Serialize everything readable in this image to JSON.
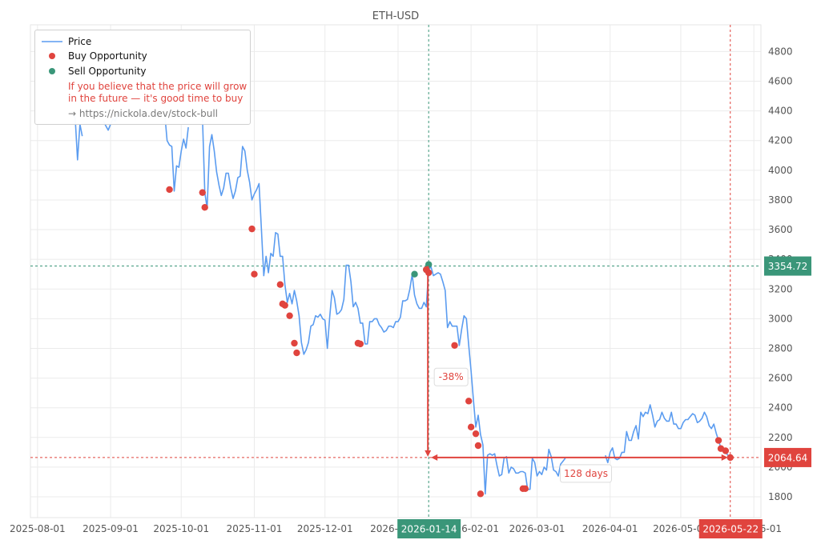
{
  "chart_data": {
    "type": "line",
    "title": "ETH-USD",
    "xlabel": "",
    "ylabel": "",
    "ylim": [
      1660,
      4980
    ],
    "y_ticks": [
      1800,
      2000,
      2200,
      2400,
      2600,
      2800,
      3000,
      3200,
      3400,
      3600,
      3800,
      4000,
      4200,
      4400,
      4600,
      4800
    ],
    "x_start": "2025-07-29",
    "x_end": "2026-06-04",
    "x_ticks": [
      "2025-08-01",
      "2025-09-01",
      "2025-10-01",
      "2025-11-01",
      "2025-12-01",
      "2026-01-01",
      "2026-02-01",
      "2026-03-01",
      "2026-04-01",
      "2026-05-01",
      "2026-06-01"
    ],
    "x_tick_labels": [
      "2025-08-01",
      "2025-09-01",
      "2025-10-01",
      "2025-11-01",
      "2025-12-01",
      "2026-01-01",
      "2026-02-01",
      "2026-03-01",
      "2026-04-01",
      "2026-05-01",
      "2026-06-01"
    ],
    "grid": true,
    "legend_position": "top-left",
    "colors": {
      "price": "#5b9cf0",
      "buy": "#e0443e",
      "sell": "#3a9679",
      "grid": "#ebebeb"
    },
    "series": [
      {
        "name": "Price",
        "x": [
          "2025-08-16",
          "2025-08-17",
          "2025-08-18",
          "2025-08-19",
          "2025-08-20",
          "2025-08-29",
          "2025-08-30",
          "2025-08-31",
          "2025-09-01",
          "2025-09-02",
          "2025-09-03",
          "2025-09-04",
          "2025-09-05",
          "2025-09-24",
          "2025-09-25",
          "2025-09-26",
          "2025-09-27",
          "2025-09-28",
          "2025-09-29",
          "2025-09-30",
          "2025-10-01",
          "2025-10-02",
          "2025-10-03",
          "2025-10-04",
          "2025-10-10",
          "2025-10-11",
          "2025-10-12",
          "2025-10-13",
          "2025-10-14",
          "2025-10-15",
          "2025-10-16",
          "2025-10-17",
          "2025-10-18",
          "2025-10-19",
          "2025-10-20",
          "2025-10-21",
          "2025-10-22",
          "2025-10-23",
          "2025-10-24",
          "2025-10-25",
          "2025-10-26",
          "2025-10-27",
          "2025-10-28",
          "2025-10-29",
          "2025-10-30",
          "2025-10-31",
          "2025-11-01",
          "2025-11-02",
          "2025-11-03",
          "2025-11-04",
          "2025-11-05",
          "2025-11-06",
          "2025-11-07",
          "2025-11-08",
          "2025-11-09",
          "2025-11-10",
          "2025-11-11",
          "2025-11-12",
          "2025-11-13",
          "2025-11-14",
          "2025-11-15",
          "2025-11-16",
          "2025-11-17",
          "2025-11-18",
          "2025-11-19",
          "2025-11-20",
          "2025-11-21",
          "2025-11-22",
          "2025-11-23",
          "2025-11-24",
          "2025-11-25",
          "2025-11-26",
          "2025-11-27",
          "2025-11-28",
          "2025-11-29",
          "2025-11-30",
          "2025-12-01",
          "2025-12-02",
          "2025-12-03",
          "2025-12-04",
          "2025-12-05",
          "2025-12-06",
          "2025-12-07",
          "2025-12-08",
          "2025-12-09",
          "2025-12-10",
          "2025-12-11",
          "2025-12-12",
          "2025-12-13",
          "2025-12-14",
          "2025-12-15",
          "2025-12-16",
          "2025-12-17",
          "2025-12-18",
          "2025-12-19",
          "2025-12-20",
          "2025-12-21",
          "2025-12-22",
          "2025-12-23",
          "2025-12-24",
          "2025-12-25",
          "2025-12-26",
          "2025-12-27",
          "2025-12-28",
          "2025-12-29",
          "2025-12-30",
          "2025-12-31",
          "2026-01-01",
          "2026-01-02",
          "2026-01-03",
          "2026-01-04",
          "2026-01-05",
          "2026-01-06",
          "2026-01-07",
          "2026-01-08",
          "2026-01-09",
          "2026-01-10",
          "2026-01-11",
          "2026-01-12",
          "2026-01-13",
          "2026-01-14",
          "2026-01-15",
          "2026-01-16",
          "2026-01-17",
          "2026-01-18",
          "2026-01-19",
          "2026-01-20",
          "2026-01-21",
          "2026-01-22",
          "2026-01-23",
          "2026-01-24",
          "2026-01-25",
          "2026-01-26",
          "2026-01-27",
          "2026-01-28",
          "2026-01-29",
          "2026-01-30",
          "2026-01-31",
          "2026-02-01",
          "2026-02-02",
          "2026-02-03",
          "2026-02-04",
          "2026-02-05",
          "2026-02-06",
          "2026-02-07",
          "2026-02-08",
          "2026-02-09",
          "2026-02-10",
          "2026-02-11",
          "2026-02-12",
          "2026-02-13",
          "2026-02-14",
          "2026-02-15",
          "2026-02-16",
          "2026-02-17",
          "2026-02-18",
          "2026-02-19",
          "2026-02-20",
          "2026-02-21",
          "2026-02-22",
          "2026-02-23",
          "2026-02-24",
          "2026-02-25",
          "2026-02-26",
          "2026-02-27",
          "2026-02-28",
          "2026-03-01",
          "2026-03-02",
          "2026-03-03",
          "2026-03-04",
          "2026-03-05",
          "2026-03-06",
          "2026-03-07",
          "2026-03-08",
          "2026-03-09",
          "2026-03-10",
          "2026-03-11",
          "2026-03-12",
          "2026-03-13",
          "2026-03-30",
          "2026-03-31",
          "2026-04-01",
          "2026-04-02",
          "2026-04-03",
          "2026-04-04",
          "2026-04-05",
          "2026-04-06",
          "2026-04-07",
          "2026-04-08",
          "2026-04-09",
          "2026-04-10",
          "2026-04-11",
          "2026-04-12",
          "2026-04-13",
          "2026-04-14",
          "2026-04-15",
          "2026-04-16",
          "2026-04-17",
          "2026-04-18",
          "2026-04-19",
          "2026-04-20",
          "2026-04-21",
          "2026-04-22",
          "2026-04-23",
          "2026-04-24",
          "2026-04-25",
          "2026-04-26",
          "2026-04-27",
          "2026-04-28",
          "2026-04-29",
          "2026-04-30",
          "2026-05-01",
          "2026-05-02",
          "2026-05-03",
          "2026-05-04",
          "2026-05-05",
          "2026-05-06",
          "2026-05-07",
          "2026-05-08",
          "2026-05-09",
          "2026-05-10",
          "2026-05-11",
          "2026-05-12",
          "2026-05-13",
          "2026-05-14",
          "2026-05-15",
          "2026-05-16",
          "2026-05-17",
          "2026-05-18",
          "2026-05-19",
          "2026-05-20",
          "2026-05-21",
          "2026-05-22"
        ],
        "values": [
          4380,
          4350,
          4070,
          4310,
          4230,
          4330,
          4300,
          4270,
          4310,
          4350,
          4330,
          4380,
          4400,
          4380,
          4200,
          4170,
          4160,
          3860,
          4030,
          4020,
          4130,
          4210,
          4150,
          4290,
          4350,
          3850,
          3745,
          4160,
          4240,
          4130,
          3990,
          3900,
          3830,
          3880,
          3980,
          3980,
          3880,
          3810,
          3860,
          3950,
          3960,
          4160,
          4130,
          4000,
          3920,
          3800,
          3840,
          3870,
          3910,
          3610,
          3290,
          3420,
          3310,
          3440,
          3420,
          3580,
          3570,
          3420,
          3420,
          3230,
          3110,
          3170,
          3100,
          3190,
          3120,
          3020,
          2840,
          2760,
          2790,
          2840,
          2950,
          2960,
          3020,
          3010,
          3030,
          3000,
          2990,
          2800,
          3010,
          3190,
          3140,
          3030,
          3040,
          3060,
          3130,
          3360,
          3360,
          3250,
          3080,
          3110,
          3070,
          2970,
          2970,
          2830,
          2830,
          2980,
          2980,
          3000,
          3000,
          2960,
          2940,
          2910,
          2920,
          2950,
          2950,
          2940,
          2980,
          2980,
          3010,
          3120,
          3120,
          3130,
          3200,
          3300,
          3160,
          3100,
          3070,
          3070,
          3110,
          3080,
          3330,
          3350,
          3290,
          3300,
          3310,
          3300,
          3250,
          3190,
          2940,
          2980,
          2950,
          2950,
          2950,
          2820,
          2930,
          3020,
          3000,
          2820,
          2650,
          2450,
          2270,
          2350,
          2220,
          2150,
          1820,
          2080,
          2090,
          2080,
          2090,
          2010,
          1940,
          1950,
          2060,
          2070,
          1960,
          2000,
          1990,
          1960,
          1960,
          1970,
          1970,
          1960,
          1850,
          1850,
          2060,
          2030,
          1940,
          1970,
          1950,
          2000,
          1980,
          2120,
          2070,
          1980,
          1970,
          1940,
          2020,
          2040,
          2060,
          2080,
          2030,
          2100,
          2130,
          2060,
          2050,
          2060,
          2100,
          2100,
          2240,
          2180,
          2180,
          2240,
          2280,
          2190,
          2370,
          2340,
          2370,
          2360,
          2420,
          2350,
          2270,
          2310,
          2320,
          2370,
          2330,
          2310,
          2310,
          2370,
          2290,
          2290,
          2260,
          2260,
          2300,
          2320,
          2320,
          2340,
          2360,
          2350,
          2300,
          2310,
          2330,
          2370,
          2340,
          2280,
          2260,
          2290,
          2230,
          2180,
          2130,
          2120,
          2100,
          2080,
          2064.64
        ]
      }
    ],
    "buy_points": {
      "x": [
        "2025-09-26",
        "2025-10-10",
        "2025-10-11",
        "2025-10-31",
        "2025-11-01",
        "2025-11-12",
        "2025-11-13",
        "2025-11-14",
        "2025-11-16",
        "2025-11-18",
        "2025-11-19",
        "2025-12-15",
        "2025-12-16",
        "2026-01-13",
        "2026-01-14",
        "2026-01-25",
        "2026-01-31",
        "2026-02-01",
        "2026-02-03",
        "2026-02-04",
        "2026-02-05",
        "2026-02-23",
        "2026-02-24",
        "2026-05-17",
        "2026-05-18",
        "2026-05-20",
        "2026-05-22"
      ],
      "values": [
        3870,
        3850,
        3750,
        3605,
        3300,
        3230,
        3100,
        3090,
        3020,
        2835,
        2770,
        2835,
        2830,
        3330,
        3310,
        2820,
        2445,
        2270,
        2225,
        2145,
        1820,
        1855,
        1855,
        2180,
        2125,
        2110,
        2064.64
      ]
    },
    "sell_points": {
      "x": [
        "2026-01-08",
        "2026-01-13",
        "2026-01-14"
      ],
      "values": [
        3300,
        3330,
        3365
      ]
    },
    "reference_lines": {
      "high_date": "2026-01-14",
      "high_date_label": "2026-01-14",
      "high_value": 3354.72,
      "high_value_label": "3354.72",
      "last_date": "2026-05-22",
      "last_date_label": "2026-05-22",
      "last_value": 2064.64,
      "last_value_label": "2064.64"
    },
    "annotations": {
      "drop_label": "-38%",
      "duration_label": "128 days"
    }
  },
  "legend": {
    "price_label": "Price",
    "buy_label": "Buy Opportunity",
    "sell_label": "Sell Opportunity",
    "note_line1": "If you believe that the price will grow",
    "note_line2": "in the future — it's good time to buy",
    "link_text": "→ https://nickola.dev/stock-bull"
  }
}
